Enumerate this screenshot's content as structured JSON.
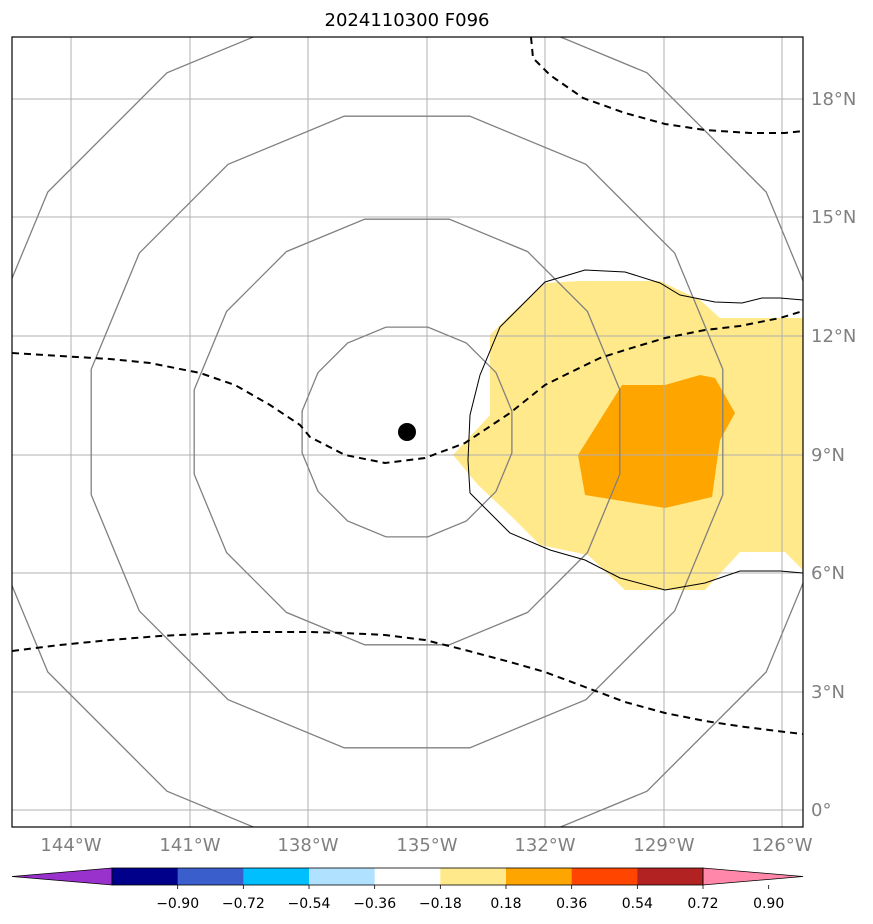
{
  "title": "2024110300 F096",
  "map": {
    "lon_labels": [
      "144°W",
      "141°W",
      "138°W",
      "135°W",
      "132°W",
      "129°W",
      "126°W"
    ],
    "lat_labels": [
      "18°N",
      "15°N",
      "12°N",
      "9°N",
      "6°N",
      "3°N",
      "0°"
    ],
    "colors": {
      "grid": "#b0b0b0",
      "range_rings": "#808080",
      "contour": "#000000",
      "fill_low": "#ffe98a",
      "fill_high": "#ffa500",
      "center_marker": "#000000"
    }
  },
  "colorbar": {
    "colors": [
      "#9932cc",
      "#00008b",
      "#3a5fcd",
      "#00bfff",
      "#b0e2ff",
      "#ffffff",
      "#ffe98a",
      "#ffa500",
      "#ff4500",
      "#b22222",
      "#ff88aa"
    ],
    "tick_labels": [
      "−0.90",
      "−0.72",
      "−0.54",
      "−0.36",
      "−0.18",
      "0.18",
      "0.36",
      "0.54",
      "0.72",
      "0.90"
    ]
  }
}
